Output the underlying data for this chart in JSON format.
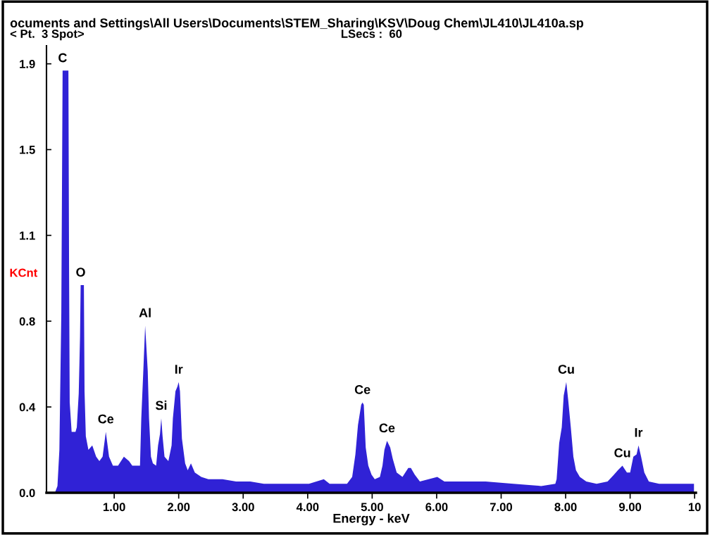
{
  "chart_data": {
    "type": "area",
    "title": "ocuments and Settings\\All Users\\Documents\\STEM_Sharing\\KSV\\Doug Chem\\JL410\\JL410a.sp",
    "subtitle": "< Pt.  3 Spot>",
    "xlabel": "Energy - keV",
    "ylabel": "KCnt",
    "x": [
      0.08,
      0.12,
      0.15,
      0.18,
      0.2,
      0.29,
      0.3,
      0.31,
      0.34,
      0.4,
      0.42,
      0.45,
      0.47,
      0.48,
      0.53,
      0.54,
      0.56,
      0.6,
      0.66,
      0.72,
      0.77,
      0.82,
      0.87,
      0.92,
      0.98,
      1.06,
      1.15,
      1.23,
      1.28,
      1.34,
      1.4,
      1.42,
      1.45,
      1.48,
      1.52,
      1.54,
      1.57,
      1.6,
      1.65,
      1.68,
      1.71,
      1.73,
      1.75,
      1.78,
      1.84,
      1.89,
      1.91,
      1.95,
      1.98,
      2.0,
      2.02,
      2.05,
      2.1,
      2.14,
      2.19,
      2.25,
      2.35,
      2.46,
      2.68,
      2.89,
      3.11,
      3.32,
      3.54,
      3.75,
      4.02,
      4.25,
      4.34,
      4.61,
      4.69,
      4.74,
      4.78,
      4.83,
      4.85,
      4.87,
      4.9,
      4.94,
      4.99,
      5.04,
      5.12,
      5.16,
      5.19,
      5.23,
      5.28,
      5.32,
      5.38,
      5.47,
      5.56,
      5.6,
      5.66,
      5.74,
      6.01,
      6.12,
      6.33,
      6.76,
      7.19,
      7.62,
      7.84,
      7.86,
      7.9,
      7.94,
      7.97,
      8.01,
      8.04,
      8.08,
      8.12,
      8.16,
      8.22,
      8.32,
      8.48,
      8.65,
      8.75,
      8.81,
      8.88,
      8.95,
      9.0,
      9.05,
      9.1,
      9.13,
      9.17,
      9.22,
      9.29,
      9.45,
      9.67,
      9.88,
      9.99
    ],
    "series": [
      {
        "color": "#3022d6",
        "values": [
          0,
          0.03,
          0.19,
          0.8,
          1.87,
          1.87,
          1.01,
          0.4,
          0.27,
          0.27,
          0.29,
          0.44,
          0.69,
          0.92,
          0.92,
          0.45,
          0.25,
          0.19,
          0.21,
          0.16,
          0.14,
          0.16,
          0.27,
          0.16,
          0.12,
          0.12,
          0.16,
          0.14,
          0.12,
          0.12,
          0.12,
          0.33,
          0.53,
          0.74,
          0.54,
          0.33,
          0.16,
          0.13,
          0.12,
          0.21,
          0.26,
          0.33,
          0.25,
          0.16,
          0.14,
          0.21,
          0.33,
          0.45,
          0.47,
          0.49,
          0.45,
          0.24,
          0.13,
          0.1,
          0.13,
          0.09,
          0.07,
          0.06,
          0.06,
          0.05,
          0.05,
          0.04,
          0.04,
          0.04,
          0.04,
          0.06,
          0.04,
          0.04,
          0.07,
          0.17,
          0.3,
          0.39,
          0.4,
          0.39,
          0.2,
          0.12,
          0.08,
          0.06,
          0.07,
          0.12,
          0.19,
          0.23,
          0.2,
          0.15,
          0.09,
          0.07,
          0.11,
          0.11,
          0.08,
          0.05,
          0.07,
          0.05,
          0.05,
          0.05,
          0.04,
          0.03,
          0.04,
          0.06,
          0.22,
          0.29,
          0.43,
          0.49,
          0.41,
          0.29,
          0.16,
          0.1,
          0.07,
          0.05,
          0.04,
          0.05,
          0.08,
          0.1,
          0.12,
          0.09,
          0.09,
          0.16,
          0.17,
          0.21,
          0.16,
          0.09,
          0.05,
          0.04,
          0.04,
          0.04,
          0.04
        ]
      }
    ],
    "xlim": [
      -0.05,
      10.02
    ],
    "ylim": [
      0,
      1.98
    ],
    "xticks": [
      {
        "value": 1,
        "label": "1.00"
      },
      {
        "value": 2,
        "label": "2.00"
      },
      {
        "value": 3,
        "label": "3.00"
      },
      {
        "value": 4,
        "label": "4.00"
      },
      {
        "value": 5,
        "label": "5.00"
      },
      {
        "value": 6,
        "label": "6.00"
      },
      {
        "value": 7,
        "label": "7.00"
      },
      {
        "value": 8,
        "label": "8.00"
      },
      {
        "value": 9,
        "label": "9.00"
      },
      {
        "value": 10,
        "label": "10"
      }
    ],
    "yticks": [
      {
        "value": 0,
        "label": "0.0"
      },
      {
        "value": 0.38,
        "label": "0.4"
      },
      {
        "value": 0.76,
        "label": "0.8"
      },
      {
        "value": 1.14,
        "label": "1.1"
      },
      {
        "value": 1.52,
        "label": "1.5"
      },
      {
        "value": 1.9,
        "label": "1.9"
      }
    ],
    "annotations": [
      "LSecs :  60",
      {
        "text": "C",
        "x": 0.2,
        "y": 1.87
      },
      {
        "text": "O",
        "x": 0.48,
        "y": 0.92
      },
      {
        "text": "Ce",
        "x": 0.87,
        "y": 0.27
      },
      {
        "text": "Al",
        "x": 1.48,
        "y": 0.74
      },
      {
        "text": "Si",
        "x": 1.73,
        "y": 0.33
      },
      {
        "text": "Ir",
        "x": 2.0,
        "y": 0.49
      },
      {
        "text": "Ce",
        "x": 4.85,
        "y": 0.4
      },
      {
        "text": "Ce",
        "x": 5.23,
        "y": 0.23
      },
      {
        "text": "Cu",
        "x": 8.01,
        "y": 0.49
      },
      {
        "text": "Cu",
        "x": 8.88,
        "y": 0.12
      },
      {
        "text": "Ir",
        "x": 9.13,
        "y": 0.21
      }
    ]
  }
}
